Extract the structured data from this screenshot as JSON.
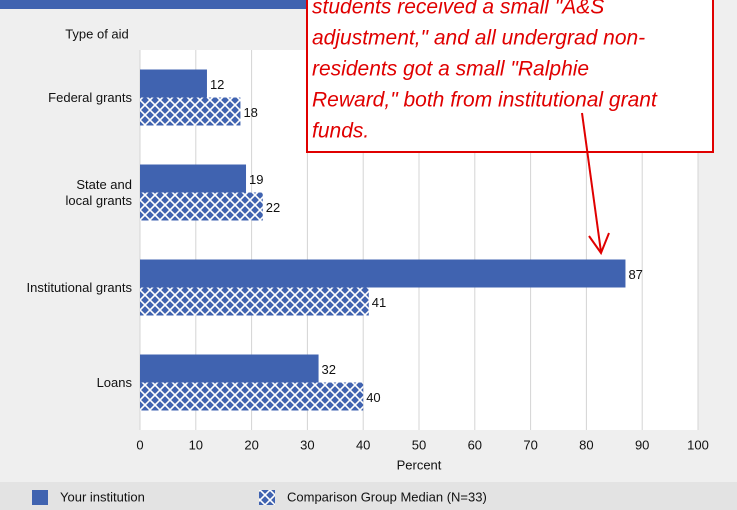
{
  "chart_data": {
    "type": "bar",
    "orientation": "horizontal",
    "axis_title_y": "Type of aid",
    "x_label": "Percent",
    "categories": [
      "Federal grants",
      "State and\nlocal grants",
      "Institutional grants",
      "Loans"
    ],
    "series": [
      {
        "name": "Your institution",
        "color": "#4063b0",
        "pattern": "solid",
        "values": [
          12,
          19,
          87,
          32
        ]
      },
      {
        "name": "Comparison Group Median (N=33)",
        "color": "#4063b0",
        "pattern": "crosshatch",
        "values": [
          18,
          22,
          41,
          40
        ]
      }
    ],
    "xlim": [
      0,
      100
    ],
    "xticks": [
      0,
      10,
      20,
      30,
      40,
      50,
      60,
      70,
      80,
      90,
      100
    ],
    "grid": true,
    "annotation_lines": [
      "students received a small \"A&S",
      "adjustment,\" and all undergrad non-",
      "residents got a small \"Ralphie",
      "Reward,\" both from institutional grant",
      "funds."
    ]
  }
}
